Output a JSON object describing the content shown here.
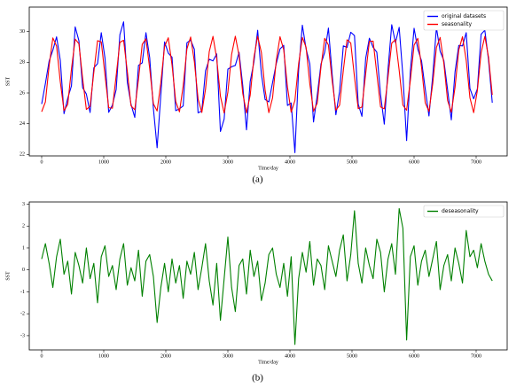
{
  "chart_data": [
    {
      "type": "line",
      "xlabel": "Time/day",
      "ylabel": "SST",
      "caption": "(a)",
      "legend": "upper right",
      "xlim": [
        -200,
        7500
      ],
      "ylim": [
        21.9,
        31.6
      ],
      "xticks": [
        0,
        1000,
        2000,
        3000,
        4000,
        5000,
        6000,
        7000
      ],
      "yticks": [
        22,
        24,
        26,
        28,
        30
      ],
      "x": [
        0,
        60,
        120,
        180,
        240,
        300,
        360,
        420,
        480,
        540,
        600,
        660,
        720,
        780,
        840,
        900,
        960,
        1020,
        1080,
        1140,
        1200,
        1260,
        1320,
        1380,
        1440,
        1500,
        1560,
        1620,
        1680,
        1740,
        1800,
        1860,
        1920,
        1980,
        2040,
        2100,
        2160,
        2220,
        2280,
        2340,
        2400,
        2460,
        2520,
        2580,
        2640,
        2700,
        2760,
        2820,
        2880,
        2940,
        3000,
        3060,
        3120,
        3180,
        3240,
        3300,
        3360,
        3420,
        3480,
        3540,
        3600,
        3660,
        3720,
        3780,
        3840,
        3900,
        3960,
        4020,
        4080,
        4140,
        4200,
        4260,
        4320,
        4380,
        4440,
        4500,
        4560,
        4620,
        4680,
        4740,
        4800,
        4860,
        4920,
        4980,
        5040,
        5100,
        5160,
        5220,
        5280,
        5340,
        5400,
        5460,
        5520,
        5580,
        5640,
        5700,
        5760,
        5820,
        5880,
        5940,
        6000,
        6060,
        6120,
        6180,
        6240,
        6300,
        6360,
        6420,
        6480,
        6540,
        6600,
        6660,
        6720,
        6780,
        6840,
        6900,
        6960,
        7020,
        7080,
        7140,
        7200,
        7260
      ],
      "series": [
        {
          "name": "original datasets",
          "color": "#0000ff",
          "values": [
            25.28,
            26.62,
            28.08,
            28.79,
            29.66,
            28.13,
            24.65,
            25.66,
            26.47,
            30.31,
            29.41,
            26.35,
            25.93,
            24.73,
            27.64,
            27.91,
            29.93,
            28.28,
            24.74,
            25.21,
            26.22,
            29.8,
            30.64,
            26.7,
            25.26,
            24.41,
            27.8,
            27.97,
            29.93,
            28.32,
            25.0,
            22.43,
            25.88,
            29.33,
            28.6,
            28.34,
            24.85,
            24.97,
            25.16,
            29.27,
            29.45,
            28.85,
            24.71,
            24.83,
            27.45,
            28.2,
            28.09,
            28.55,
            23.49,
            24.3,
            27.55,
            27.71,
            27.8,
            28.65,
            26.48,
            23.6,
            26.76,
            28.02,
            30.09,
            27.24,
            25.58,
            25.42,
            26.68,
            27.92,
            28.87,
            29.11,
            25.19,
            25.35,
            22.11,
            27.51,
            30.42,
            28.88,
            27.9,
            24.11,
            25.85,
            27.89,
            28.66,
            30.23,
            27.22,
            24.58,
            26.11,
            29.07,
            28.97,
            29.96,
            29.74,
            25.28,
            24.48,
            28.25,
            29.57,
            28.98,
            28.66,
            25.89,
            23.97,
            27.53,
            30.45,
            29.28,
            30.28,
            27.11,
            22.9,
            27.41,
            30.22,
            28.86,
            28.1,
            26.26,
            24.5,
            27.09,
            30.27,
            28.72,
            28.12,
            26.21,
            24.25,
            27.37,
            29.1,
            29.07,
            29.93,
            26.29,
            25.62,
            26.27,
            29.83,
            30.09,
            28.13,
            25.37
          ]
        },
        {
          "name": "seasonality",
          "color": "#ff0000",
          "values": [
            24.78,
            25.42,
            27.78,
            29.59,
            29.06,
            26.73,
            24.85,
            25.26,
            27.57,
            29.51,
            29.21,
            26.95,
            24.93,
            25.13,
            27.34,
            29.41,
            29.33,
            27.18,
            25.04,
            25.01,
            27.12,
            29.3,
            29.44,
            27.4,
            25.16,
            24.91,
            26.9,
            29.17,
            29.53,
            27.62,
            25.3,
            24.83,
            26.68,
            29.03,
            29.6,
            27.84,
            25.45,
            24.77,
            26.46,
            28.87,
            29.65,
            28.05,
            25.61,
            24.73,
            26.25,
            28.7,
            29.69,
            28.25,
            25.79,
            24.7,
            26.05,
            28.51,
            29.7,
            28.45,
            25.98,
            24.7,
            25.86,
            28.32,
            29.69,
            28.64,
            26.18,
            24.72,
            25.68,
            28.12,
            29.67,
            28.81,
            26.39,
            24.75,
            25.51,
            27.91,
            29.62,
            28.98,
            26.6,
            24.81,
            25.35,
            27.69,
            29.56,
            29.13,
            26.82,
            24.88,
            25.21,
            27.47,
            29.47,
            29.26,
            27.04,
            24.98,
            25.08,
            27.25,
            29.37,
            29.38,
            27.26,
            25.09,
            24.97,
            27.03,
            29.25,
            29.48,
            27.48,
            25.21,
            24.88,
            26.81,
            29.12,
            29.56,
            27.7,
            25.36,
            24.8,
            26.59,
            28.97,
            29.62,
            27.92,
            25.51,
            24.75,
            26.37,
            28.8,
            29.67,
            28.13,
            25.69,
            24.72,
            26.17,
            28.63,
            29.69,
            28.33,
            25.87
          ]
        }
      ]
    },
    {
      "type": "line",
      "xlabel": "Time/day",
      "ylabel": "SST",
      "caption": "(b)",
      "legend": "upper right",
      "xlim": [
        -200,
        7500
      ],
      "ylim": [
        -3.65,
        3.1
      ],
      "xticks": [
        0,
        1000,
        2000,
        3000,
        4000,
        5000,
        6000,
        7000
      ],
      "yticks": [
        -3,
        -2,
        -1,
        0,
        1,
        2,
        3
      ],
      "x": [
        0,
        60,
        120,
        180,
        240,
        300,
        360,
        420,
        480,
        540,
        600,
        660,
        720,
        780,
        840,
        900,
        960,
        1020,
        1080,
        1140,
        1200,
        1260,
        1320,
        1380,
        1440,
        1500,
        1560,
        1620,
        1680,
        1740,
        1800,
        1860,
        1920,
        1980,
        2040,
        2100,
        2160,
        2220,
        2280,
        2340,
        2400,
        2460,
        2520,
        2580,
        2640,
        2700,
        2760,
        2820,
        2880,
        2940,
        3000,
        3060,
        3120,
        3180,
        3240,
        3300,
        3360,
        3420,
        3480,
        3540,
        3600,
        3660,
        3720,
        3780,
        3840,
        3900,
        3960,
        4020,
        4080,
        4140,
        4200,
        4260,
        4320,
        4380,
        4440,
        4500,
        4560,
        4620,
        4680,
        4740,
        4800,
        4860,
        4920,
        4980,
        5040,
        5100,
        5160,
        5220,
        5280,
        5340,
        5400,
        5460,
        5520,
        5580,
        5640,
        5700,
        5760,
        5820,
        5880,
        5940,
        6000,
        6060,
        6120,
        6180,
        6240,
        6300,
        6360,
        6420,
        6480,
        6540,
        6600,
        6660,
        6720,
        6780,
        6840,
        6900,
        6960,
        7020,
        7080,
        7140,
        7200,
        7260
      ],
      "series": [
        {
          "name": "deseasonality",
          "color": "#008000",
          "values": [
            0.5,
            1.2,
            0.3,
            -0.8,
            0.6,
            1.4,
            -0.2,
            0.4,
            -1.1,
            0.8,
            0.2,
            -0.6,
            1.0,
            -0.4,
            0.3,
            -1.5,
            0.6,
            1.1,
            -0.3,
            0.2,
            -0.9,
            0.5,
            1.2,
            -0.7,
            0.1,
            -0.5,
            0.9,
            -1.2,
            0.4,
            0.7,
            -0.3,
            -2.4,
            -0.8,
            0.3,
            -1.0,
            0.5,
            -0.6,
            0.2,
            -1.3,
            0.4,
            -0.2,
            0.8,
            -0.9,
            0.1,
            1.2,
            -0.5,
            -1.6,
            0.3,
            -2.3,
            -0.4,
            1.5,
            -0.8,
            -1.9,
            0.2,
            0.5,
            -1.1,
            0.9,
            -0.3,
            0.4,
            -1.4,
            -0.6,
            0.7,
            1.0,
            -0.2,
            -0.8,
            0.3,
            -1.2,
            0.6,
            -3.4,
            -0.4,
            0.8,
            -0.1,
            1.3,
            -0.7,
            0.5,
            0.2,
            -0.9,
            1.1,
            0.4,
            -0.3,
            0.9,
            1.6,
            -0.5,
            0.7,
            2.7,
            0.3,
            -0.6,
            1.0,
            0.2,
            -0.4,
            1.4,
            0.8,
            -1.0,
            0.5,
            1.2,
            -0.2,
            2.8,
            1.9,
            -3.2,
            0.6,
            1.1,
            -0.7,
            0.4,
            0.9,
            -0.3,
            0.5,
            1.3,
            -0.9,
            0.2,
            0.7,
            -0.5,
            1.0,
            0.3,
            -0.6,
            1.8,
            0.6,
            0.9,
            0.1,
            1.2,
            0.4,
            -0.2,
            -0.5
          ]
        }
      ]
    }
  ]
}
